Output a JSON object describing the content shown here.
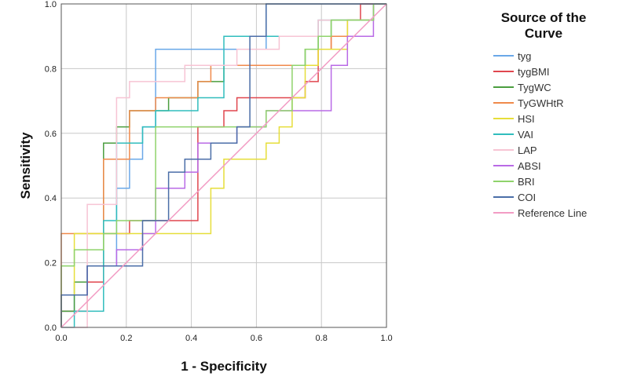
{
  "chart_data": {
    "type": "line",
    "xlabel": "1 - Specificity",
    "ylabel": "Sensitivity",
    "xlim": [
      0,
      1
    ],
    "ylim": [
      0,
      1
    ],
    "x_ticks": [
      "0.0",
      "0.2",
      "0.4",
      "0.6",
      "0.8",
      "1.0"
    ],
    "y_ticks": [
      "0.0",
      "0.2",
      "0.4",
      "0.6",
      "0.8",
      "1.0"
    ],
    "grid": true,
    "legend": {
      "title_line1": "Source of the",
      "title_line2": "Curve",
      "placement": "right"
    },
    "series": [
      {
        "name": "tyg",
        "color": "#6aa8e8",
        "points": [
          [
            0,
            0
          ],
          [
            0,
            0.05
          ],
          [
            0.04,
            0.05
          ],
          [
            0.04,
            0.1
          ],
          [
            0.08,
            0.1
          ],
          [
            0.08,
            0.19
          ],
          [
            0.17,
            0.19
          ],
          [
            0.17,
            0.43
          ],
          [
            0.21,
            0.43
          ],
          [
            0.21,
            0.52
          ],
          [
            0.25,
            0.52
          ],
          [
            0.25,
            0.62
          ],
          [
            0.29,
            0.62
          ],
          [
            0.29,
            0.86
          ],
          [
            0.46,
            0.86
          ],
          [
            0.46,
            0.86
          ],
          [
            0.63,
            0.86
          ],
          [
            0.63,
            1.0
          ],
          [
            1,
            1
          ]
        ]
      },
      {
        "name": "tygBMI",
        "color": "#e0464e",
        "points": [
          [
            0,
            0
          ],
          [
            0,
            0.05
          ],
          [
            0.08,
            0.05
          ],
          [
            0.08,
            0.14
          ],
          [
            0.13,
            0.14
          ],
          [
            0.13,
            0.29
          ],
          [
            0.21,
            0.29
          ],
          [
            0.21,
            0.33
          ],
          [
            0.42,
            0.33
          ],
          [
            0.42,
            0.62
          ],
          [
            0.5,
            0.62
          ],
          [
            0.5,
            0.67
          ],
          [
            0.54,
            0.67
          ],
          [
            0.54,
            0.71
          ],
          [
            0.67,
            0.71
          ],
          [
            0.67,
            0.71
          ],
          [
            0.75,
            0.71
          ],
          [
            0.75,
            0.76
          ],
          [
            0.79,
            0.76
          ],
          [
            0.79,
            0.86
          ],
          [
            0.83,
            0.86
          ],
          [
            0.83,
            0.9
          ],
          [
            0.88,
            0.9
          ],
          [
            0.88,
            0.95
          ],
          [
            0.92,
            0.95
          ],
          [
            0.92,
            1.0
          ],
          [
            1,
            1
          ]
        ]
      },
      {
        "name": "TygWC",
        "color": "#4b9e3f",
        "points": [
          [
            0,
            0
          ],
          [
            0,
            0.05
          ],
          [
            0.04,
            0.05
          ],
          [
            0.04,
            0.14
          ],
          [
            0.08,
            0.14
          ],
          [
            0.08,
            0.19
          ],
          [
            0.13,
            0.19
          ],
          [
            0.13,
            0.57
          ],
          [
            0.17,
            0.57
          ],
          [
            0.17,
            0.62
          ],
          [
            0.21,
            0.62
          ],
          [
            0.21,
            0.67
          ],
          [
            0.29,
            0.67
          ],
          [
            0.29,
            0.67
          ],
          [
            0.33,
            0.67
          ],
          [
            0.33,
            0.71
          ],
          [
            0.42,
            0.71
          ],
          [
            0.42,
            0.76
          ],
          [
            0.5,
            0.76
          ],
          [
            0.5,
            0.81
          ],
          [
            0.63,
            0.81
          ],
          [
            0.63,
            0.81
          ],
          [
            0.75,
            0.81
          ],
          [
            0.75,
            0.86
          ],
          [
            0.79,
            0.86
          ],
          [
            0.79,
            0.9
          ],
          [
            0.83,
            0.9
          ],
          [
            0.83,
            0.95
          ],
          [
            0.96,
            0.95
          ],
          [
            0.96,
            1.0
          ],
          [
            1,
            1
          ]
        ]
      },
      {
        "name": "TyGWHtR",
        "color": "#f08a4b",
        "points": [
          [
            0,
            0
          ],
          [
            0,
            0.29
          ],
          [
            0.13,
            0.29
          ],
          [
            0.13,
            0.52
          ],
          [
            0.21,
            0.52
          ],
          [
            0.21,
            0.67
          ],
          [
            0.29,
            0.67
          ],
          [
            0.29,
            0.71
          ],
          [
            0.42,
            0.71
          ],
          [
            0.42,
            0.76
          ],
          [
            0.46,
            0.76
          ],
          [
            0.46,
            0.81
          ],
          [
            0.63,
            0.81
          ],
          [
            0.63,
            0.81
          ],
          [
            0.79,
            0.81
          ],
          [
            0.79,
            0.86
          ],
          [
            0.83,
            0.86
          ],
          [
            0.83,
            0.9
          ],
          [
            0.88,
            0.9
          ],
          [
            0.88,
            0.95
          ],
          [
            0.96,
            0.95
          ],
          [
            0.96,
            1.0
          ],
          [
            1,
            1
          ]
        ]
      },
      {
        "name": "HSI",
        "color": "#e6de3a",
        "points": [
          [
            0,
            0
          ],
          [
            0,
            0.1
          ],
          [
            0.04,
            0.1
          ],
          [
            0.04,
            0.29
          ],
          [
            0.46,
            0.29
          ],
          [
            0.46,
            0.43
          ],
          [
            0.5,
            0.43
          ],
          [
            0.5,
            0.52
          ],
          [
            0.63,
            0.52
          ],
          [
            0.63,
            0.57
          ],
          [
            0.67,
            0.57
          ],
          [
            0.67,
            0.62
          ],
          [
            0.71,
            0.62
          ],
          [
            0.71,
            0.71
          ],
          [
            0.75,
            0.71
          ],
          [
            0.75,
            0.81
          ],
          [
            0.79,
            0.81
          ],
          [
            0.79,
            0.86
          ],
          [
            0.88,
            0.86
          ],
          [
            0.88,
            0.95
          ],
          [
            0.96,
            0.95
          ],
          [
            0.96,
            1.0
          ],
          [
            1,
            1
          ]
        ]
      },
      {
        "name": "VAI",
        "color": "#30bdbd",
        "points": [
          [
            0,
            0
          ],
          [
            0,
            0
          ],
          [
            0.04,
            0
          ],
          [
            0.04,
            0.05
          ],
          [
            0.13,
            0.05
          ],
          [
            0.13,
            0.33
          ],
          [
            0.17,
            0.33
          ],
          [
            0.17,
            0.57
          ],
          [
            0.25,
            0.57
          ],
          [
            0.25,
            0.62
          ],
          [
            0.29,
            0.62
          ],
          [
            0.29,
            0.67
          ],
          [
            0.42,
            0.67
          ],
          [
            0.42,
            0.71
          ],
          [
            0.5,
            0.71
          ],
          [
            0.5,
            0.9
          ],
          [
            0.63,
            0.9
          ],
          [
            0.63,
            0.9
          ],
          [
            0.79,
            0.9
          ],
          [
            0.79,
            0.95
          ],
          [
            0.96,
            0.95
          ],
          [
            0.96,
            1.0
          ],
          [
            1,
            1
          ]
        ]
      },
      {
        "name": "LAP",
        "color": "#f7c4d4",
        "points": [
          [
            0,
            0
          ],
          [
            0.08,
            0
          ],
          [
            0.08,
            0.38
          ],
          [
            0.17,
            0.38
          ],
          [
            0.17,
            0.71
          ],
          [
            0.21,
            0.71
          ],
          [
            0.21,
            0.76
          ],
          [
            0.38,
            0.76
          ],
          [
            0.38,
            0.81
          ],
          [
            0.54,
            0.81
          ],
          [
            0.54,
            0.86
          ],
          [
            0.67,
            0.86
          ],
          [
            0.67,
            0.9
          ],
          [
            0.79,
            0.9
          ],
          [
            0.79,
            0.95
          ],
          [
            0.96,
            0.95
          ],
          [
            0.96,
            1.0
          ],
          [
            1,
            1
          ]
        ]
      },
      {
        "name": "ABSI",
        "color": "#b96ae6",
        "points": [
          [
            0,
            0
          ],
          [
            0,
            0.1
          ],
          [
            0.08,
            0.1
          ],
          [
            0.08,
            0.19
          ],
          [
            0.17,
            0.19
          ],
          [
            0.17,
            0.24
          ],
          [
            0.25,
            0.24
          ],
          [
            0.25,
            0.29
          ],
          [
            0.29,
            0.29
          ],
          [
            0.29,
            0.43
          ],
          [
            0.38,
            0.43
          ],
          [
            0.38,
            0.48
          ],
          [
            0.42,
            0.48
          ],
          [
            0.42,
            0.57
          ],
          [
            0.54,
            0.57
          ],
          [
            0.54,
            0.62
          ],
          [
            0.63,
            0.62
          ],
          [
            0.63,
            0.67
          ],
          [
            0.83,
            0.67
          ],
          [
            0.83,
            0.81
          ],
          [
            0.88,
            0.81
          ],
          [
            0.88,
            0.9
          ],
          [
            0.96,
            0.9
          ],
          [
            0.96,
            1.0
          ],
          [
            1,
            1
          ]
        ]
      },
      {
        "name": "BRI",
        "color": "#8fd36b",
        "points": [
          [
            0,
            0
          ],
          [
            0,
            0.19
          ],
          [
            0.04,
            0.19
          ],
          [
            0.04,
            0.24
          ],
          [
            0.13,
            0.24
          ],
          [
            0.13,
            0.29
          ],
          [
            0.17,
            0.29
          ],
          [
            0.17,
            0.33
          ],
          [
            0.29,
            0.33
          ],
          [
            0.29,
            0.62
          ],
          [
            0.46,
            0.62
          ],
          [
            0.46,
            0.62
          ],
          [
            0.63,
            0.62
          ],
          [
            0.63,
            0.67
          ],
          [
            0.71,
            0.67
          ],
          [
            0.71,
            0.81
          ],
          [
            0.75,
            0.81
          ],
          [
            0.75,
            0.86
          ],
          [
            0.79,
            0.86
          ],
          [
            0.79,
            0.9
          ],
          [
            0.83,
            0.9
          ],
          [
            0.83,
            0.95
          ],
          [
            0.96,
            0.95
          ],
          [
            0.96,
            1.0
          ],
          [
            1,
            1
          ]
        ]
      },
      {
        "name": "COI",
        "color": "#4b6ea8",
        "points": [
          [
            0,
            0
          ],
          [
            0,
            0.1
          ],
          [
            0.08,
            0.1
          ],
          [
            0.08,
            0.19
          ],
          [
            0.25,
            0.19
          ],
          [
            0.25,
            0.33
          ],
          [
            0.33,
            0.33
          ],
          [
            0.33,
            0.48
          ],
          [
            0.38,
            0.48
          ],
          [
            0.38,
            0.52
          ],
          [
            0.46,
            0.52
          ],
          [
            0.46,
            0.57
          ],
          [
            0.54,
            0.57
          ],
          [
            0.54,
            0.62
          ],
          [
            0.58,
            0.62
          ],
          [
            0.58,
            0.9
          ],
          [
            0.63,
            0.9
          ],
          [
            0.63,
            1.0
          ],
          [
            1,
            1
          ]
        ]
      },
      {
        "name": "Reference Line",
        "color": "#f29cc4",
        "points": [
          [
            0,
            0
          ],
          [
            1,
            1
          ]
        ]
      }
    ]
  }
}
